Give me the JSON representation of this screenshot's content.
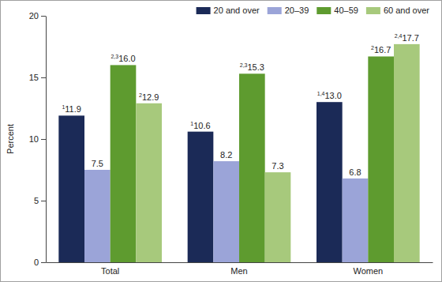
{
  "chart_data": {
    "type": "bar",
    "y_label": "Percent",
    "categories": [
      "Total",
      "Men",
      "Women"
    ],
    "series": [
      {
        "name": "20 and over",
        "color": "#1b2a57",
        "values": [
          11.9,
          10.6,
          13.0
        ],
        "notes": [
          "1",
          "1",
          "1,4"
        ]
      },
      {
        "name": "20–39",
        "color": "#9ba4d8",
        "values": [
          7.5,
          8.2,
          6.8
        ],
        "notes": [
          null,
          null,
          null
        ]
      },
      {
        "name": "40–59",
        "color": "#5e9b2f",
        "values": [
          16.0,
          15.3,
          16.7
        ],
        "notes": [
          "2,3",
          "2,3",
          "2"
        ]
      },
      {
        "name": "60 and over",
        "color": "#a7c97c",
        "values": [
          12.9,
          7.3,
          17.7
        ],
        "notes": [
          "2",
          null,
          "2,4"
        ]
      }
    ],
    "ylim": [
      0,
      20
    ],
    "yticks": [
      0,
      5,
      10,
      15,
      20
    ],
    "grid": false,
    "legend": "top-right",
    "data_labels": true
  }
}
